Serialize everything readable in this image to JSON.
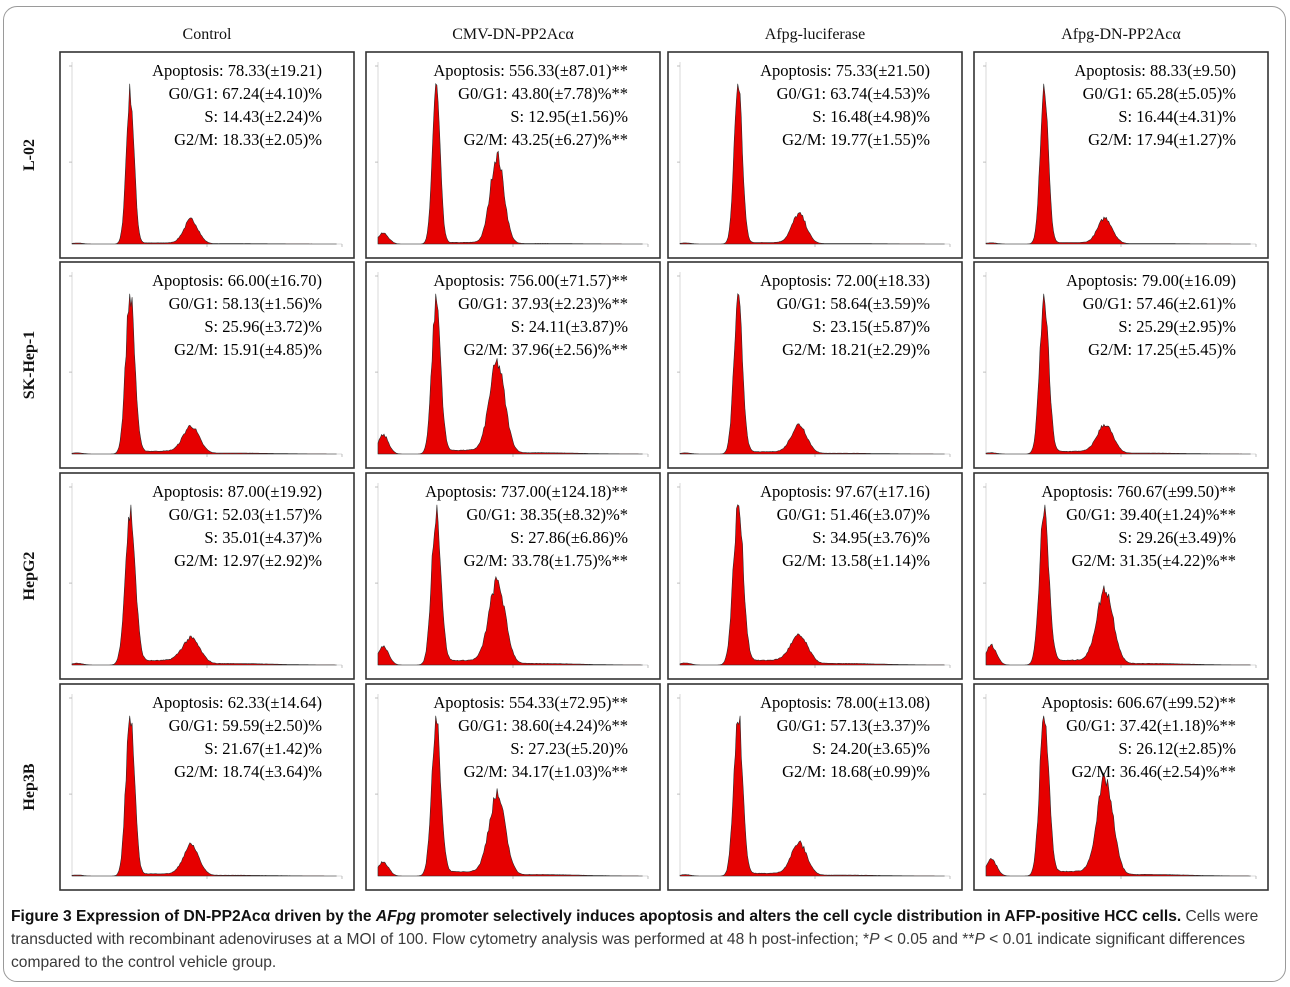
{
  "chart_data": {
    "type": "area",
    "columns": [
      "Control",
      "CMV-DN-PP2Acα",
      "Afpg-luciferase",
      "Afpg-DN-PP2Acα"
    ],
    "rows": [
      "L-02",
      "SK-Hep-1",
      "HepG2",
      "Hep3B"
    ],
    "panels": [
      [
        {
          "lines": [
            "Apoptosis: 78.33(±19.21)",
            "G0/G1: 67.24(±4.10)%",
            "S: 14.43(±2.24)%",
            "G2/M: 18.33(±2.05)%"
          ],
          "g1": 67.24,
          "s": 14.43,
          "g2m": 18.33
        },
        {
          "lines": [
            "Apoptosis: 556.33(±87.01)**",
            "G0/G1: 43.80(±7.78)%**",
            "S: 12.95(±1.56)%",
            "G2/M: 43.25(±6.27)%**"
          ],
          "g1": 43.8,
          "s": 12.95,
          "g2m": 43.25
        },
        {
          "lines": [
            "Apoptosis: 75.33(±21.50)",
            "G0/G1: 63.74(±4.53)%",
            "S: 16.48(±4.98)%",
            "G2/M: 19.77(±1.55)%"
          ],
          "g1": 63.74,
          "s": 16.48,
          "g2m": 19.77
        },
        {
          "lines": [
            "Apoptosis: 88.33(±9.50)",
            "G0/G1: 65.28(±5.05)%",
            "S: 16.44(±4.31)%",
            "G2/M: 17.94(±1.27)%"
          ],
          "g1": 65.28,
          "s": 16.44,
          "g2m": 17.94
        }
      ],
      [
        {
          "lines": [
            "Apoptosis: 66.00(±16.70)",
            "G0/G1: 58.13(±1.56)%",
            "S: 25.96(±3.72)%",
            "G2/M: 15.91(±4.85)%"
          ],
          "g1": 58.13,
          "s": 25.96,
          "g2m": 15.91
        },
        {
          "lines": [
            "Apoptosis: 756.00(±71.57)**",
            "G0/G1: 37.93(±2.23)%**",
            "S: 24.11(±3.87)%",
            "G2/M: 37.96(±2.56)%**"
          ],
          "g1": 37.93,
          "s": 24.11,
          "g2m": 37.96
        },
        {
          "lines": [
            "Apoptosis: 72.00(±18.33)",
            "G0/G1: 58.64(±3.59)%",
            "S: 23.15(±5.87)%",
            "G2/M: 18.21(±2.29)%"
          ],
          "g1": 58.64,
          "s": 23.15,
          "g2m": 18.21
        },
        {
          "lines": [
            "Apoptosis: 79.00(±16.09)",
            "G0/G1: 57.46(±2.61)%",
            "S: 25.29(±2.95)%",
            "G2/M: 17.25(±5.45)%"
          ],
          "g1": 57.46,
          "s": 25.29,
          "g2m": 17.25
        }
      ],
      [
        {
          "lines": [
            "Apoptosis: 87.00(±19.92)",
            "G0/G1: 52.03(±1.57)%",
            "S: 35.01(±4.37)%",
            "G2/M: 12.97(±2.92)%"
          ],
          "g1": 52.03,
          "s": 35.01,
          "g2m": 12.97
        },
        {
          "lines": [
            "Apoptosis: 737.00(±124.18)**",
            "G0/G1: 38.35(±8.32)%*",
            "S: 27.86(±6.86)%",
            "G2/M: 33.78(±1.75)%**"
          ],
          "g1": 38.35,
          "s": 27.86,
          "g2m": 33.78
        },
        {
          "lines": [
            "Apoptosis: 97.67(±17.16)",
            "G0/G1: 51.46(±3.07)%",
            "S: 34.95(±3.76)%",
            "G2/M: 13.58(±1.14)%"
          ],
          "g1": 51.46,
          "s": 34.95,
          "g2m": 13.58
        },
        {
          "lines": [
            "Apoptosis: 760.67(±99.50)**",
            "G0/G1: 39.40(±1.24)%**",
            "S: 29.26(±3.49)%",
            "G2/M: 31.35(±4.22)%**"
          ],
          "g1": 39.4,
          "s": 29.26,
          "g2m": 31.35
        }
      ],
      [
        {
          "lines": [
            "Apoptosis: 62.33(±14.64)",
            "G0/G1: 59.59(±2.50)%",
            "S: 21.67(±1.42)%",
            "G2/M: 18.74(±3.64)%"
          ],
          "g1": 59.59,
          "s": 21.67,
          "g2m": 18.74
        },
        {
          "lines": [
            "Apoptosis: 554.33(±72.95)**",
            "G0/G1: 38.60(±4.24)%**",
            "S: 27.23(±5.20)%",
            "G2/M: 34.17(±1.03)%**"
          ],
          "g1": 38.6,
          "s": 27.23,
          "g2m": 34.17
        },
        {
          "lines": [
            "Apoptosis: 78.00(±13.08)",
            "G0/G1: 57.13(±3.37)%",
            "S: 24.20(±3.65)%",
            "G2/M: 18.68(±0.99)%"
          ],
          "g1": 57.13,
          "s": 24.2,
          "g2m": 18.68
        },
        {
          "lines": [
            "Apoptosis: 606.67(±99.52)**",
            "G0/G1: 37.42(±1.18)%**",
            "S: 26.12(±2.85)%",
            "G2/M: 36.46(±2.54)%**"
          ],
          "g1": 37.42,
          "s": 26.12,
          "g2m": 36.46
        }
      ]
    ]
  },
  "caption": {
    "label": "Figure 3",
    "bold_part1": "Expression of DN-PP2Acα driven by the",
    "italic": "AFpg",
    "bold_part2": "promoter selectively induces apoptosis and alters the cell cycle distribution in AFP-positive HCC cells.",
    "body_part1": "Cells were transducted with recombinant adenoviruses at a MOI of 100. Flow cytometry analysis was performed at 48 h post-infection; *",
    "p1": "P",
    "body_part2": " < 0.05 and **",
    "p2": "P",
    "body_part3": " < 0.01 indicate significant differences compared to the control vehicle group."
  },
  "colors": {
    "histogram_fill": "#e60000",
    "histogram_edge": "#2a2a2a",
    "panel_border": "#333333"
  }
}
